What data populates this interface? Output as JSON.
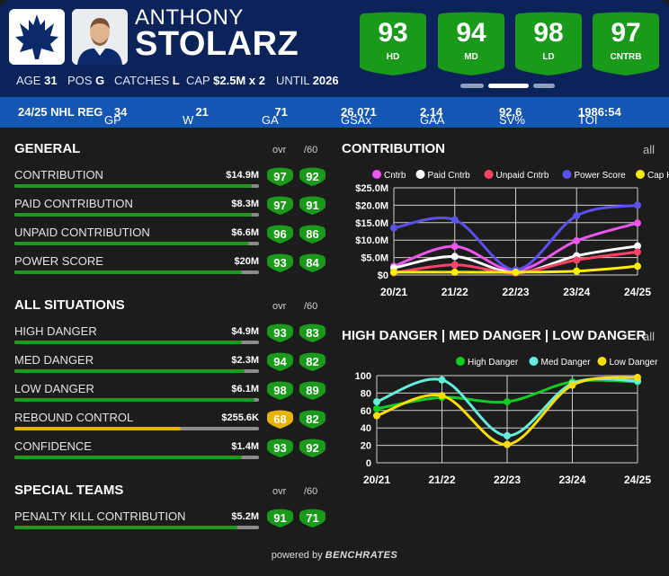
{
  "player": {
    "first_name": "ANTHONY",
    "last_name": "STOLARZ",
    "age_label": "AGE",
    "age": "31",
    "pos_label": "POS",
    "pos": "G",
    "catches_label": "CATCHES",
    "catches": "L",
    "cap_label": "CAP",
    "cap": "$2.5M x 2",
    "until_label": "UNTIL",
    "until": "2026"
  },
  "badges": [
    {
      "value": "93",
      "label": "HD"
    },
    {
      "value": "94",
      "label": "MD"
    },
    {
      "value": "98",
      "label": "LD"
    },
    {
      "value": "97",
      "label": "CNTRB"
    }
  ],
  "season_stats": {
    "season": "24/25 NHL REG",
    "gp_label": "GP",
    "gp": "34",
    "w_label": "W",
    "w": "21",
    "ga_label": "GA",
    "ga": "71",
    "gsax_label": "GSAx",
    "gsax": "26.071",
    "gaa_label": "GAA",
    "gaa": "2.14",
    "sv_label": "SV%",
    "sv": "92.6",
    "toi_label": "TOI",
    "toi": "1986:54"
  },
  "colors": {
    "header_bg": "#0b2359",
    "stat_bar_bg": "#1356b4",
    "rating_green": "#1a9a1a",
    "rating_yellow": "#e6b400"
  },
  "col_ovr": "ovr",
  "col_per60": "/60",
  "sections": [
    {
      "title": "GENERAL",
      "rows": [
        {
          "label": "CONTRIBUTION",
          "value": "$14.9M",
          "ovr": "97",
          "per60": "92",
          "fill": 0.97,
          "color": "green"
        },
        {
          "label": "PAID CONTRIBUTION",
          "value": "$8.3M",
          "ovr": "97",
          "per60": "91",
          "fill": 0.97,
          "color": "green"
        },
        {
          "label": "UNPAID CONTRIBUTION",
          "value": "$6.6M",
          "ovr": "96",
          "per60": "86",
          "fill": 0.96,
          "color": "green"
        },
        {
          "label": "POWER SCORE",
          "value": "$20M",
          "ovr": "93",
          "per60": "84",
          "fill": 0.93,
          "color": "green"
        }
      ]
    },
    {
      "title": "ALL SITUATIONS",
      "rows": [
        {
          "label": "HIGH DANGER",
          "value": "$4.9M",
          "ovr": "93",
          "per60": "83",
          "fill": 0.93,
          "color": "green"
        },
        {
          "label": "MED DANGER",
          "value": "$2.3M",
          "ovr": "94",
          "per60": "82",
          "fill": 0.94,
          "color": "green"
        },
        {
          "label": "LOW DANGER",
          "value": "$6.1M",
          "ovr": "98",
          "per60": "89",
          "fill": 0.98,
          "color": "green"
        },
        {
          "label": "REBOUND CONTROL",
          "value": "$255.6K",
          "ovr": "68",
          "per60": "82",
          "fill": 0.68,
          "color": "yellow"
        },
        {
          "label": "CONFIDENCE",
          "value": "$1.4M",
          "ovr": "93",
          "per60": "92",
          "fill": 0.93,
          "color": "green"
        }
      ]
    },
    {
      "title": "SPECIAL TEAMS",
      "rows": [
        {
          "label": "PENALTY KILL CONTRIBUTION",
          "value": "$5.2M",
          "ovr": "91",
          "per60": "71",
          "fill": 0.91,
          "color": "green"
        }
      ]
    }
  ],
  "charts_ui": {
    "all_label": "all"
  },
  "chart_data": [
    {
      "type": "line",
      "title": "CONTRIBUTION",
      "x": [
        "20/21",
        "21/22",
        "22/23",
        "23/24",
        "24/25"
      ],
      "ylim": [
        0,
        25
      ],
      "yticks": [
        "$0",
        "$5.0M",
        "$10.0M",
        "$15.0M",
        "$20.0M",
        "$25.0M"
      ],
      "ytick_values": [
        0,
        5,
        10,
        15,
        20,
        25
      ],
      "legend": "top",
      "grid": true,
      "series": [
        {
          "name": "Cntrb",
          "color": "#ee55ee",
          "values": [
            2.5,
            8.2,
            1.2,
            9.8,
            14.9
          ]
        },
        {
          "name": "Paid Cntrb",
          "color": "#ffffff",
          "values": [
            2.0,
            5.3,
            0.6,
            5.5,
            8.3
          ]
        },
        {
          "name": "Unpaid Cntrb",
          "color": "#ff4466",
          "values": [
            0.6,
            2.9,
            0.6,
            4.3,
            6.6
          ]
        },
        {
          "name": "Power Score",
          "color": "#5a50ee",
          "values": [
            13.5,
            15.8,
            1.5,
            17.0,
            20.0
          ]
        },
        {
          "name": "Cap Hit",
          "color": "#ffee00",
          "values": [
            0.8,
            0.8,
            0.8,
            1.1,
            2.5
          ]
        }
      ]
    },
    {
      "type": "line",
      "title": "HIGH DANGER | MED DANGER | LOW DANGER",
      "x": [
        "20/21",
        "21/22",
        "22/23",
        "23/24",
        "24/25"
      ],
      "ylim": [
        0,
        100
      ],
      "yticks": [
        "0",
        "20",
        "40",
        "60",
        "80",
        "100"
      ],
      "ytick_values": [
        0,
        20,
        40,
        60,
        80,
        100
      ],
      "legend": "top",
      "grid": true,
      "series": [
        {
          "name": "High Danger",
          "color": "#11cc22",
          "values": [
            62,
            75,
            70,
            93,
            93
          ]
        },
        {
          "name": "Med Danger",
          "color": "#66eedd",
          "values": [
            70,
            95,
            31,
            91,
            94
          ]
        },
        {
          "name": "Low Danger",
          "color": "#ffdd00",
          "values": [
            54,
            77,
            21,
            89,
            98
          ]
        }
      ]
    }
  ],
  "footer": {
    "powered_by": "powered by",
    "brand": "BENCHRATES"
  }
}
